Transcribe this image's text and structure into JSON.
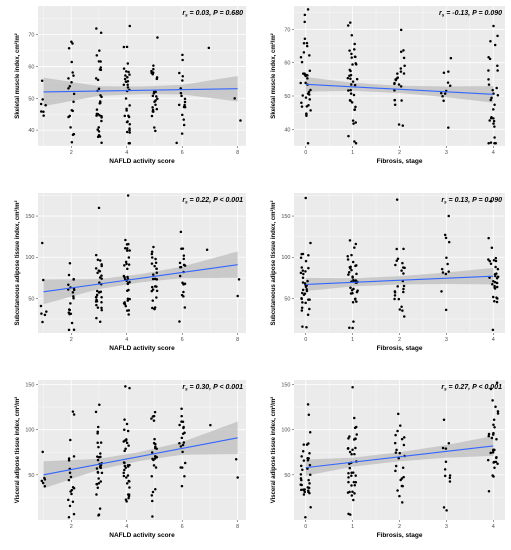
{
  "chart_data": [
    {
      "type": "scatter",
      "xlabel": "NAFLD activity score",
      "ylabel": "Skeletal muscle index, cm²/m²",
      "annotation": {
        "r": "r",
        "sub": "s",
        "text": " = 0.03, P = 0.680"
      },
      "xlim": [
        0.8,
        8.3
      ],
      "ylim": [
        35,
        79
      ],
      "xticks": [
        2,
        4,
        6,
        8
      ],
      "yticks": [
        40,
        50,
        60,
        70
      ],
      "fit": {
        "x": [
          1,
          8
        ],
        "y": [
          52.0,
          53.0
        ]
      },
      "band_halfwidth": {
        "x": [
          1,
          3,
          4.5,
          6,
          8
        ],
        "y": [
          4.5,
          1.5,
          1.2,
          1.5,
          4.0
        ]
      },
      "counts": {
        "1": 7,
        "2": 20,
        "3": 33,
        "4": 34,
        "5": 26,
        "6": 18,
        "7": 1,
        "8": 1
      },
      "y_center": 52,
      "y_spread": 8.5,
      "extra_points": [
        [
          8.1,
          43
        ],
        [
          4.1,
          40
        ],
        [
          4.1,
          40.5
        ],
        [
          5.8,
          36
        ]
      ],
      "seed": 11
    },
    {
      "type": "scatter",
      "xlabel": "Fibrosis, stage",
      "ylabel": "Skeletal muscle index, cm²/m²",
      "annotation": {
        "r": "r",
        "sub": "s",
        "text": " = -0.13, P = 0.090"
      },
      "xlim": [
        -0.25,
        4.25
      ],
      "ylim": [
        35,
        77
      ],
      "xticks": [
        0,
        1,
        2,
        3,
        4
      ],
      "yticks": [
        40,
        50,
        60,
        70
      ],
      "fit": {
        "x": [
          0,
          4
        ],
        "y": [
          53.5,
          50.5
        ]
      },
      "band_halfwidth": {
        "x": [
          0,
          1,
          2,
          3,
          4
        ],
        "y": [
          2.2,
          1.2,
          1.1,
          1.6,
          2.5
        ]
      },
      "counts": {
        "0": 37,
        "1": 38,
        "2": 24,
        "3": 11,
        "4": 30
      },
      "y_center": 52,
      "y_spread": 8.5,
      "extra_points": [
        [
          0.05,
          76
        ],
        [
          0.95,
          72
        ],
        [
          3.95,
          36
        ]
      ],
      "seed": 23
    },
    {
      "type": "scatter",
      "xlabel": "NAFLD activity score",
      "ylabel": "Subcutaneous adipose tissue index, cm²/m²",
      "annotation": {
        "r": "r",
        "sub": "s",
        "text": " = 0.22, P < 0.001"
      },
      "xlim": [
        0.8,
        8.3
      ],
      "ylim": [
        8,
        178
      ],
      "xticks": [
        2,
        4,
        6,
        8
      ],
      "yticks": [
        50,
        100,
        150
      ],
      "fit": {
        "x": [
          1,
          8
        ],
        "y": [
          58,
          91
        ]
      },
      "band_halfwidth": {
        "x": [
          1,
          3,
          4.5,
          6,
          8
        ],
        "y": [
          15,
          6,
          5,
          7,
          16
        ]
      },
      "counts": {
        "1": 5,
        "2": 20,
        "3": 32,
        "4": 34,
        "5": 26,
        "6": 20,
        "7": 1,
        "8": 1
      },
      "y_center": 70,
      "y_spread": 24,
      "extra_points": [
        [
          1.05,
          30
        ],
        [
          1.1,
          34
        ],
        [
          2.1,
          12
        ],
        [
          3.0,
          160
        ],
        [
          4.05,
          175
        ],
        [
          5.9,
          22
        ],
        [
          8.0,
          53
        ]
      ],
      "seed": 37
    },
    {
      "type": "scatter",
      "xlabel": "Fibrosis, stage",
      "ylabel": "Subcutaneous adipose tissue index, cm²/m²",
      "annotation": {
        "r": "r",
        "sub": "s",
        "text": " = 0.13, P = 0.090"
      },
      "xlim": [
        -0.25,
        4.25
      ],
      "ylim": [
        8,
        178
      ],
      "xticks": [
        0,
        1,
        2,
        3,
        4
      ],
      "yticks": [
        50,
        100,
        150
      ],
      "fit": {
        "x": [
          0,
          4
        ],
        "y": [
          67,
          77
        ]
      },
      "band_halfwidth": {
        "x": [
          0,
          1,
          2,
          3,
          4
        ],
        "y": [
          8,
          5,
          5,
          7,
          10
        ]
      },
      "counts": {
        "0": 37,
        "1": 38,
        "2": 24,
        "3": 11,
        "4": 30
      },
      "y_center": 72,
      "y_spread": 26,
      "extra_points": [
        [
          0.0,
          172
        ],
        [
          1.0,
          14
        ],
        [
          1.95,
          170
        ],
        [
          3.95,
          168
        ],
        [
          3.05,
          150
        ]
      ],
      "seed": 53
    },
    {
      "type": "scatter",
      "xlabel": "NAFLD activity score",
      "ylabel": "Visceral adipose tissue index, cm²/m²",
      "annotation": {
        "r": "r",
        "sub": "s",
        "text": " = 0.30, P < 0.001"
      },
      "xlim": [
        0.8,
        8.3
      ],
      "ylim": [
        0,
        155
      ],
      "xticks": [
        2,
        4,
        6,
        8
      ],
      "yticks": [
        50,
        100,
        150
      ],
      "fit": {
        "x": [
          1,
          8
        ],
        "y": [
          50,
          91
        ]
      },
      "band_halfwidth": {
        "x": [
          1,
          3,
          4.5,
          6,
          8
        ],
        "y": [
          15,
          6,
          5,
          7,
          18
        ]
      },
      "counts": {
        "1": 5,
        "2": 20,
        "3": 32,
        "4": 34,
        "5": 26,
        "6": 20,
        "7": 1,
        "8": 1
      },
      "y_center": 68,
      "y_spread": 28,
      "extra_points": [
        [
          1.05,
          45
        ],
        [
          3.95,
          148
        ],
        [
          4.1,
          146
        ],
        [
          8.0,
          47
        ],
        [
          3.0,
          6
        ]
      ],
      "seed": 71
    },
    {
      "type": "scatter",
      "xlabel": "Fibrosis, stage",
      "ylabel": "Visceral adipose tissue index, cm²/m²",
      "annotation": {
        "r": "r",
        "sub": "s",
        "text": " = 0.27, P < 0.001"
      },
      "xlim": [
        -0.25,
        4.25
      ],
      "ylim": [
        0,
        155
      ],
      "xticks": [
        0,
        1,
        2,
        3,
        4
      ],
      "yticks": [
        50,
        100,
        150
      ],
      "fit": {
        "x": [
          0,
          4
        ],
        "y": [
          58,
          82
        ]
      },
      "band_halfwidth": {
        "x": [
          0,
          1,
          2,
          3,
          4
        ],
        "y": [
          9,
          5,
          5,
          7,
          11
        ]
      },
      "counts": {
        "0": 37,
        "1": 38,
        "2": 24,
        "3": 11,
        "4": 30
      },
      "y_center": 70,
      "y_spread": 28,
      "extra_points": [
        [
          0.05,
          128
        ],
        [
          1.0,
          147
        ],
        [
          3.95,
          145
        ],
        [
          0.95,
          6
        ],
        [
          2.95,
          14
        ]
      ],
      "seed": 89
    }
  ],
  "colors": {
    "panel_bg": "#ebebeb",
    "grid": "#ffffff",
    "points": "#000000",
    "fit_line": "#3366ff",
    "band": "#bdbdbd"
  }
}
